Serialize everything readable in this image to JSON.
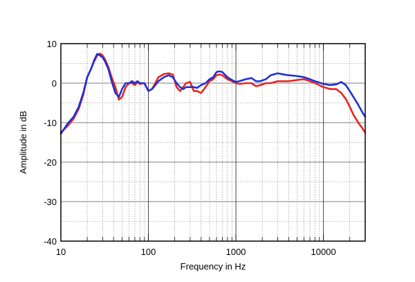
{
  "chart_data": {
    "type": "line",
    "title": "",
    "xlabel": "Frequency in Hz",
    "ylabel": "Amplitude in dB",
    "xscale": "log",
    "xlim": [
      10,
      30000
    ],
    "ylim": [
      -40,
      10
    ],
    "x_ticks": [
      10,
      100,
      1000,
      10000
    ],
    "x_tick_labels": [
      "10",
      "100",
      "1000",
      "10000"
    ],
    "y_ticks": [
      -40,
      -30,
      -20,
      -10,
      0,
      10
    ],
    "y_tick_labels": [
      "-40",
      "-30",
      "-20",
      "-10",
      "0",
      "10"
    ],
    "grid": true,
    "colors": {
      "series_red": "#e8251f",
      "series_blue": "#1f2fd6",
      "frame": "#000000",
      "grid": "#777777"
    },
    "series": [
      {
        "color": "#e8251f",
        "points": [
          [
            10,
            -12.5
          ],
          [
            12,
            -10.8
          ],
          [
            14,
            -9
          ],
          [
            16,
            -6.5
          ],
          [
            18,
            -3
          ],
          [
            20,
            1.5
          ],
          [
            22,
            3.5
          ],
          [
            24,
            5.5
          ],
          [
            26,
            7
          ],
          [
            28,
            7.5
          ],
          [
            30,
            7
          ],
          [
            32,
            6
          ],
          [
            35,
            4
          ],
          [
            38,
            1.5
          ],
          [
            42,
            -1
          ],
          [
            46,
            -4.2
          ],
          [
            50,
            -3.5
          ],
          [
            55,
            -1
          ],
          [
            60,
            0
          ],
          [
            65,
            0
          ],
          [
            70,
            -0.5
          ],
          [
            75,
            0.2
          ],
          [
            80,
            -0.2
          ],
          [
            90,
            0
          ],
          [
            100,
            -2
          ],
          [
            110,
            -1.5
          ],
          [
            120,
            0
          ],
          [
            130,
            1.5
          ],
          [
            150,
            2.3
          ],
          [
            170,
            2.5
          ],
          [
            190,
            2.2
          ],
          [
            210,
            -1
          ],
          [
            230,
            -2
          ],
          [
            250,
            -1
          ],
          [
            270,
            0
          ],
          [
            300,
            0.3
          ],
          [
            330,
            -2
          ],
          [
            360,
            -2
          ],
          [
            400,
            -2.5
          ],
          [
            450,
            -1
          ],
          [
            500,
            0.5
          ],
          [
            550,
            1
          ],
          [
            600,
            2
          ],
          [
            650,
            2.2
          ],
          [
            700,
            2
          ],
          [
            800,
            1
          ],
          [
            900,
            0.5
          ],
          [
            1000,
            0
          ],
          [
            1100,
            -0.2
          ],
          [
            1300,
            0
          ],
          [
            1500,
            0
          ],
          [
            1700,
            -0.8
          ],
          [
            1900,
            -0.5
          ],
          [
            2200,
            0
          ],
          [
            2500,
            0
          ],
          [
            3000,
            0.5
          ],
          [
            3500,
            0.5
          ],
          [
            4000,
            0.5
          ],
          [
            5000,
            0.8
          ],
          [
            6000,
            1
          ],
          [
            7000,
            0.5
          ],
          [
            8000,
            0
          ],
          [
            10000,
            -1
          ],
          [
            12000,
            -1.5
          ],
          [
            14000,
            -1.5
          ],
          [
            16000,
            -2.5
          ],
          [
            18000,
            -4
          ],
          [
            20000,
            -6
          ],
          [
            22000,
            -8
          ],
          [
            25000,
            -10
          ],
          [
            28000,
            -11.5
          ],
          [
            30000,
            -12.5
          ]
        ]
      },
      {
        "color": "#1f2fd6",
        "points": [
          [
            10,
            -12.8
          ],
          [
            12,
            -10.2
          ],
          [
            14,
            -8.5
          ],
          [
            16,
            -6
          ],
          [
            18,
            -2.5
          ],
          [
            20,
            1.5
          ],
          [
            22,
            3.5
          ],
          [
            24,
            5.8
          ],
          [
            26,
            7.4
          ],
          [
            28,
            7
          ],
          [
            30,
            6.5
          ],
          [
            32,
            5.5
          ],
          [
            35,
            3.5
          ],
          [
            38,
            0.5
          ],
          [
            42,
            -2.5
          ],
          [
            46,
            -3.5
          ],
          [
            50,
            -1.5
          ],
          [
            55,
            0
          ],
          [
            60,
            0
          ],
          [
            65,
            0.5
          ],
          [
            70,
            0
          ],
          [
            75,
            0.5
          ],
          [
            80,
            0
          ],
          [
            90,
            0
          ],
          [
            100,
            -2
          ],
          [
            110,
            -1.5
          ],
          [
            120,
            -0.5
          ],
          [
            130,
            0.5
          ],
          [
            150,
            1.5
          ],
          [
            170,
            2
          ],
          [
            190,
            1.5
          ],
          [
            210,
            0
          ],
          [
            230,
            -1
          ],
          [
            250,
            -1.5
          ],
          [
            270,
            -1
          ],
          [
            300,
            -1
          ],
          [
            330,
            -1
          ],
          [
            360,
            -1.2
          ],
          [
            400,
            -0.5
          ],
          [
            450,
            0
          ],
          [
            500,
            1
          ],
          [
            550,
            1.5
          ],
          [
            600,
            2.8
          ],
          [
            650,
            3
          ],
          [
            700,
            2.8
          ],
          [
            800,
            1.5
          ],
          [
            900,
            0.8
          ],
          [
            1000,
            0.3
          ],
          [
            1100,
            0.5
          ],
          [
            1300,
            1
          ],
          [
            1500,
            1.3
          ],
          [
            1700,
            0.5
          ],
          [
            1900,
            0.5
          ],
          [
            2200,
            1
          ],
          [
            2500,
            2
          ],
          [
            3000,
            2.5
          ],
          [
            3500,
            2.2
          ],
          [
            4000,
            2
          ],
          [
            5000,
            1.8
          ],
          [
            6000,
            1.5
          ],
          [
            7000,
            1
          ],
          [
            8000,
            0.5
          ],
          [
            10000,
            -0.2
          ],
          [
            12000,
            -0.5
          ],
          [
            14000,
            -0.3
          ],
          [
            16000,
            0.3
          ],
          [
            18000,
            -0.5
          ],
          [
            20000,
            -2
          ],
          [
            22000,
            -3.5
          ],
          [
            25000,
            -5.5
          ],
          [
            28000,
            -7.5
          ],
          [
            30000,
            -8.5
          ]
        ]
      }
    ]
  }
}
